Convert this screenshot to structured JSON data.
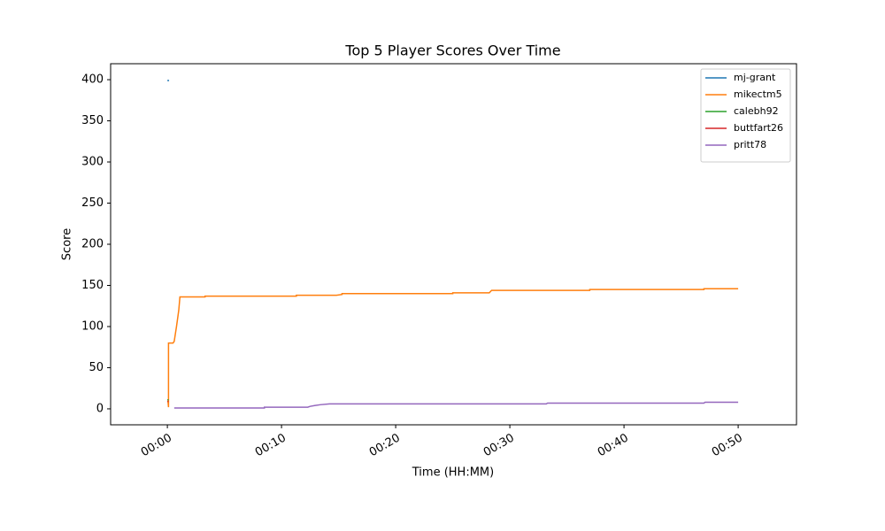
{
  "chart_data": {
    "type": "line",
    "title": "Top 5 Player Scores Over Time",
    "x_label": "Time (HH:MM)",
    "y_label": "Score",
    "xlim": [
      -4.97,
      55.11
    ],
    "ylim": [
      -19.4,
      419.4
    ],
    "xticks": [
      {
        "value": 0,
        "label": "00:00"
      },
      {
        "value": 10,
        "label": "00:10"
      },
      {
        "value": 20,
        "label": "00:20"
      },
      {
        "value": 30,
        "label": "00:30"
      },
      {
        "value": 40,
        "label": "00:40"
      },
      {
        "value": 50,
        "label": "00:50"
      }
    ],
    "yticks": [
      0,
      50,
      100,
      150,
      200,
      250,
      300,
      350,
      400
    ],
    "legend": "upper right",
    "series": [
      {
        "name": "mj-grant",
        "color": "#1f77b4",
        "x": [
          0,
          0.15
        ],
        "values": [
          399,
          399
        ]
      },
      {
        "name": "mikectm5",
        "color": "#ff7f0e",
        "x": [
          0.05,
          0.1,
          0.1,
          0.5,
          0.6,
          0.8,
          1.0,
          1.1,
          3.3,
          3.3,
          11.3,
          11.3,
          14.8,
          15.3,
          15.3,
          25.0,
          25.0,
          28.2,
          28.4,
          37.0,
          37.0,
          47.0,
          47.0,
          50.0
        ],
        "values": [
          10,
          2,
          80,
          80,
          82,
          100,
          120,
          136,
          136,
          137,
          137,
          138,
          138,
          139,
          140,
          140,
          141,
          141,
          144,
          144,
          145,
          145,
          146,
          146
        ]
      },
      {
        "name": "calebh92",
        "color": "#2ca02c",
        "x": [
          0,
          0.1
        ],
        "values": [
          11,
          11
        ]
      },
      {
        "name": "buttfart26",
        "color": "#d62728",
        "x": [
          0,
          0.1
        ],
        "values": [
          9,
          9
        ]
      },
      {
        "name": "pritt78",
        "color": "#9467bd",
        "x": [
          0.6,
          8.5,
          8.5,
          12.3,
          12.5,
          12.9,
          13.4,
          14.2,
          33.2,
          33.3,
          47.0,
          47.1,
          50.0
        ],
        "values": [
          1,
          1,
          2,
          2,
          3,
          4,
          5,
          6,
          6,
          7,
          7,
          8,
          8
        ]
      }
    ]
  }
}
